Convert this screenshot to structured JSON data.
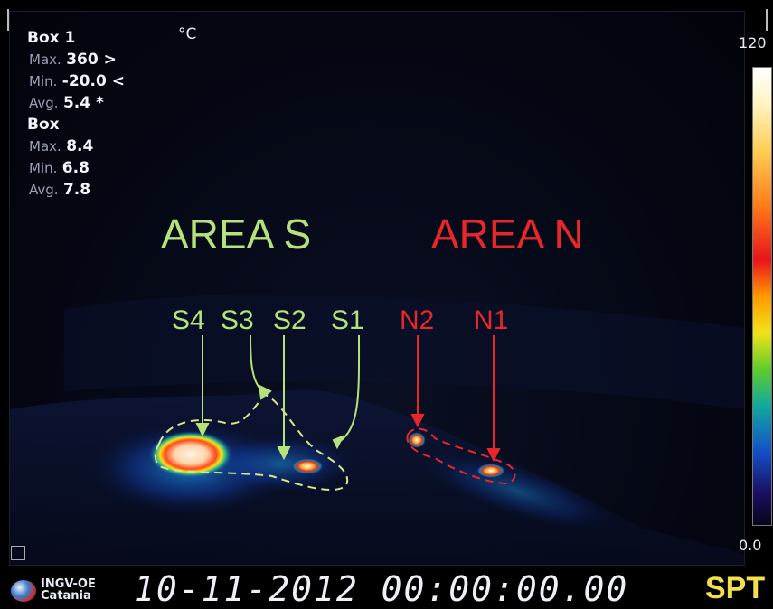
{
  "overlay": {
    "box1": {
      "header": "Box 1",
      "max_label": "Max.",
      "max_value": "360 >",
      "min_label": "Min.",
      "min_value": "-20.0 <",
      "avg_label": "Avg.",
      "avg_value": "5.4 *"
    },
    "box": {
      "header": "Box",
      "max_label": "Max.",
      "max_value": "8.4",
      "min_label": "Min.",
      "min_value": "6.8",
      "avg_label": "Avg.",
      "avg_value": "7.8"
    },
    "unit": "°C",
    "scale_max": "120",
    "scale_min": "0.0"
  },
  "areas": {
    "south": {
      "label": "AREA S",
      "color": "#b5e27a",
      "points": [
        "S4",
        "S3",
        "S2",
        "S1"
      ]
    },
    "north": {
      "label": "AREA N",
      "color": "#e8272a",
      "points": [
        "N2",
        "N1"
      ]
    }
  },
  "footer": {
    "logo_line1": "INGV-OE",
    "logo_line2": "Catania",
    "datetime": "10-11-2012 00:00:00.00",
    "mode": "SPT"
  },
  "colorbar": [
    "#ffffff",
    "#ffcf55",
    "#e8141a",
    "#f2e21a",
    "#12a8a0",
    "#1250c8",
    "#06061a"
  ]
}
